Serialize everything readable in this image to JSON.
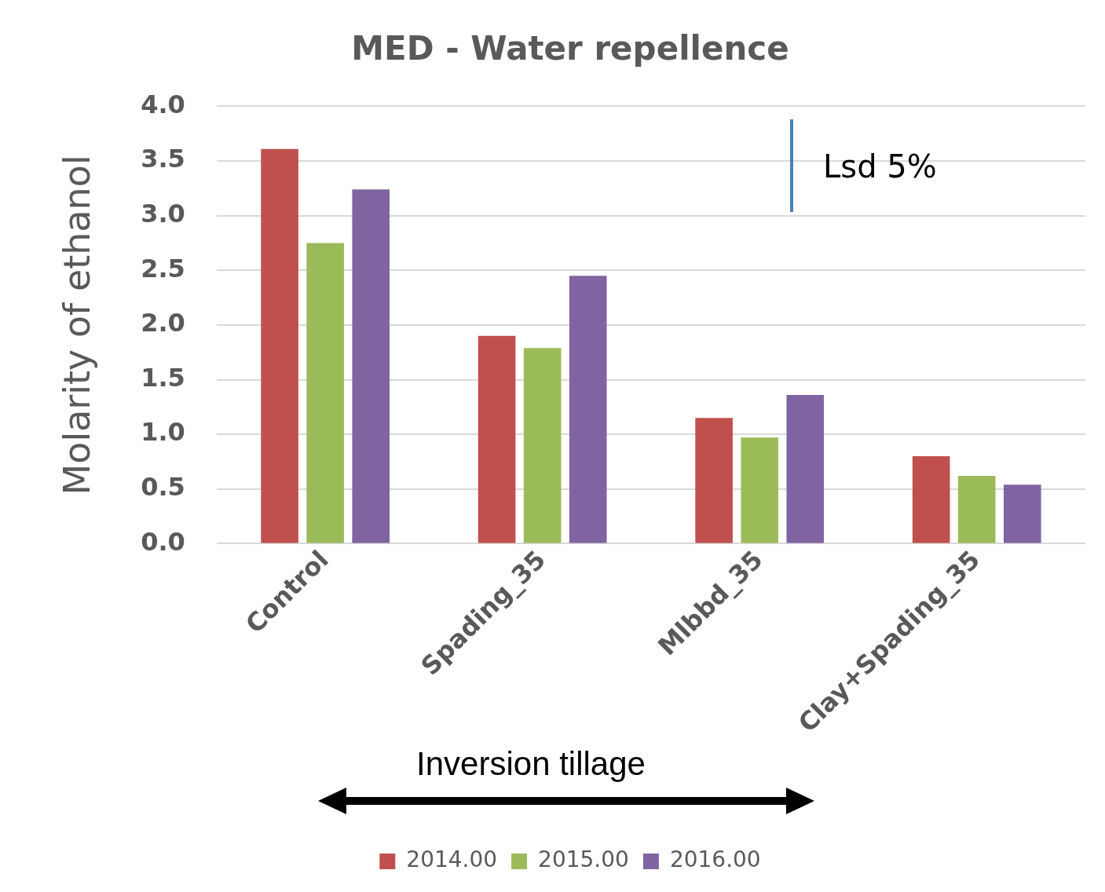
{
  "chart_data": {
    "type": "bar",
    "title": "MED - Water repellence",
    "ylabel": "Molarity of ethanol",
    "categories": [
      "Control",
      "Spading_35",
      "Mlbbd_35",
      "Clay+Spading_35"
    ],
    "series": [
      {
        "name": "2014.00",
        "color": "#c0504d",
        "values": [
          3.61,
          1.9,
          1.15,
          0.8
        ]
      },
      {
        "name": "2015.00",
        "color": "#9bbb59",
        "values": [
          2.75,
          1.79,
          0.97,
          0.62
        ]
      },
      {
        "name": "2016.00",
        "color": "#8064a2",
        "values": [
          3.24,
          2.45,
          1.36,
          0.54
        ]
      }
    ],
    "ylim": [
      0,
      4
    ],
    "yticks": [
      {
        "value": 0,
        "label": "0.0"
      },
      {
        "value": 0.5,
        "label": "0.5"
      },
      {
        "value": 1,
        "label": "1.0"
      },
      {
        "value": 1.5,
        "label": "1.5"
      },
      {
        "value": 2,
        "label": "2.0"
      },
      {
        "value": 2.5,
        "label": "2.5"
      },
      {
        "value": 3,
        "label": "3.0"
      },
      {
        "value": 3.5,
        "label": "3.5"
      },
      {
        "value": 4,
        "label": "4.0"
      }
    ],
    "grid": "y",
    "legend": "bottom",
    "annotations": [
      "Lsd 5%",
      "Inversion tillage"
    ]
  }
}
